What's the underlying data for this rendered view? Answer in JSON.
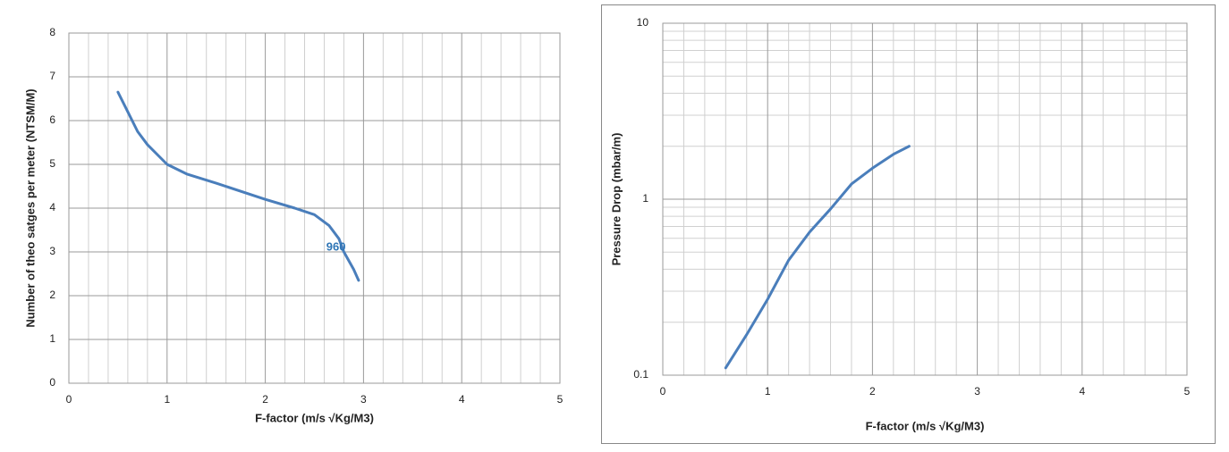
{
  "chart_data": [
    {
      "type": "line",
      "x_label": "F-factor (m/s √Kg/M3)",
      "y_label": "Number of theo satges per meter  (NTSM/M)",
      "xlim": [
        0,
        5
      ],
      "xticks": [
        0,
        1,
        2,
        3,
        4,
        5
      ],
      "ylim": [
        0,
        8
      ],
      "yticks": [
        0,
        1,
        2,
        3,
        4,
        5,
        6,
        7,
        8
      ],
      "grid": true,
      "minor_grid": true,
      "log_y": false,
      "series": [
        {
          "color": "#4a7ebb",
          "x": [
            0.5,
            0.6,
            0.7,
            0.8,
            1.0,
            1.2,
            1.5,
            2.0,
            2.3,
            2.5,
            2.65,
            2.75,
            2.8,
            2.9,
            2.95
          ],
          "values": [
            6.65,
            6.2,
            5.75,
            5.45,
            5.0,
            4.78,
            4.57,
            4.2,
            4.0,
            3.85,
            3.6,
            3.3,
            3.0,
            2.6,
            2.35
          ]
        }
      ],
      "annotations": [
        {
          "text": "960",
          "x": 2.72,
          "y": 3.1,
          "color": "#2e75b6"
        }
      ]
    },
    {
      "type": "line",
      "x_label": "F-factor (m/s √Kg/M3)",
      "y_label": "Pressure Drop (mbar/m)",
      "xlim": [
        0,
        5
      ],
      "xticks": [
        0,
        1,
        2,
        3,
        4,
        5
      ],
      "ylim": [
        0.1,
        10
      ],
      "yticks": [
        0.1,
        1,
        10
      ],
      "grid": true,
      "minor_grid": true,
      "log_y": true,
      "series": [
        {
          "color": "#4a7ebb",
          "x": [
            0.6,
            0.8,
            1.0,
            1.2,
            1.4,
            1.6,
            1.8,
            2.0,
            2.2,
            2.35
          ],
          "values": [
            0.11,
            0.17,
            0.27,
            0.45,
            0.65,
            0.88,
            1.22,
            1.5,
            1.8,
            2.0
          ]
        }
      ],
      "annotations": []
    }
  ]
}
